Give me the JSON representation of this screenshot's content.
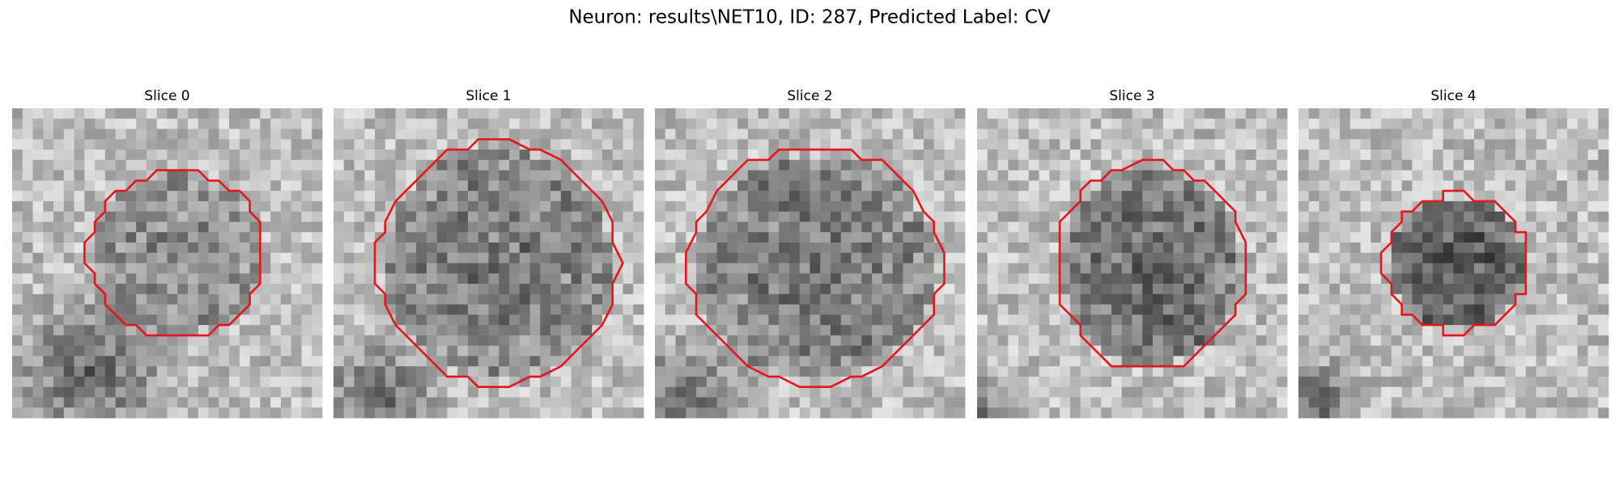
{
  "title": "Neuron: results\\NET10, ID: 287, Predicted Label: CV",
  "panels": [
    {
      "title": "Slice 0"
    },
    {
      "title": "Slice 1"
    },
    {
      "title": "Slice 2"
    },
    {
      "title": "Slice 3"
    },
    {
      "title": "Slice 4"
    }
  ]
}
